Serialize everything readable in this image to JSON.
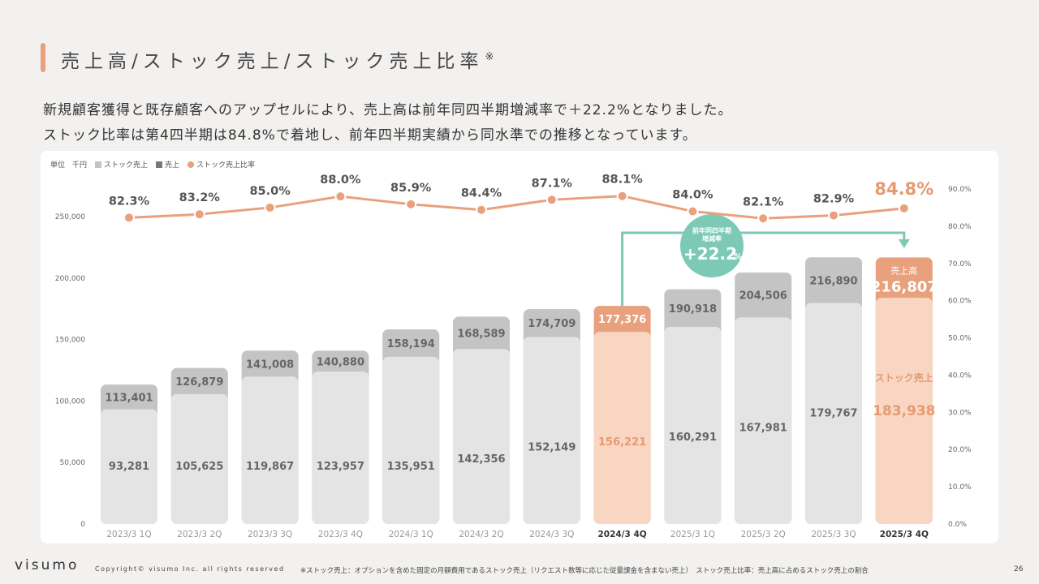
{
  "header": {
    "title": "売上高/ストック売上/ストック売上比率",
    "title_mark": "※",
    "line1": "新規顧客獲得と既存顧客へのアップセルにより、売上高は前年同四半期増減率で＋22.2%となりました。",
    "line2": "ストック比率は第4四半期は84.8%で着地し、前年四半期実績から同水準での推移となっています。"
  },
  "legend": {
    "unit": "単位　千円",
    "stock": "ストック売上",
    "total": "売上",
    "ratio": "ストック売上比率"
  },
  "callout": {
    "line1": "前年同四半期",
    "line2": "増減率",
    "value": "+22.2",
    "unit": "%"
  },
  "last_bar_labels": {
    "total": "売上高",
    "stock": "ストック売上"
  },
  "colors": {
    "stock": "#e4e4e4",
    "total": "#c4c4c4",
    "highlight_stock": "#f8d6c2",
    "highlight_total": "#e9a07c",
    "ratio_line": "#e9a07c",
    "callout": "#7cc9b5",
    "accent_text": "#e69a72"
  },
  "chart_data": {
    "type": "bar",
    "categories": [
      "2023/3 1Q",
      "2023/3 2Q",
      "2023/3 3Q",
      "2023/3 4Q",
      "2024/3 1Q",
      "2024/3 2Q",
      "2024/3 3Q",
      "2024/3 4Q",
      "2025/3 1Q",
      "2025/3 2Q",
      "2025/3 3Q",
      "2025/3 4Q"
    ],
    "series": [
      {
        "name": "売上",
        "values": [
          113401,
          126879,
          141008,
          140880,
          158194,
          168589,
          174709,
          177376,
          190918,
          204506,
          216890,
          216807
        ]
      },
      {
        "name": "ストック売上",
        "values": [
          93281,
          105625,
          119867,
          123957,
          135951,
          142356,
          152149,
          156221,
          160291,
          167981,
          179767,
          183938
        ]
      },
      {
        "name": "ストック売上比率",
        "values": [
          82.3,
          83.2,
          85.0,
          88.0,
          85.9,
          84.4,
          87.1,
          88.1,
          84.0,
          82.1,
          82.9,
          84.8
        ]
      }
    ],
    "y_left": {
      "min": 0,
      "max": 250000,
      "ticks": [
        "0",
        "50,000",
        "100,000",
        "150,000",
        "200,000",
        "250,000"
      ]
    },
    "y_right": {
      "min": 0,
      "max": 90,
      "ticks": [
        "0.0%",
        "10.0%",
        "20.0%",
        "30.0%",
        "40.0%",
        "50.0%",
        "60.0%",
        "70.0%",
        "80.0%",
        "90.0%"
      ]
    },
    "bar_labels": [
      "113,401",
      "126,879",
      "141,008",
      "140,880",
      "158,194",
      "168,589",
      "174,709",
      "177,376",
      "190,918",
      "204,506",
      "216,890",
      "216,807"
    ],
    "stock_labels": [
      "93,281",
      "105,625",
      "119,867",
      "123,957",
      "135,951",
      "142,356",
      "152,149",
      "156,221",
      "160,291",
      "167,981",
      "179,767",
      "183,938"
    ],
    "ratio_labels": [
      "82.3%",
      "83.2%",
      "85.0%",
      "88.0%",
      "85.9%",
      "84.4%",
      "87.1%",
      "88.1%",
      "84.0%",
      "82.1%",
      "82.9%",
      "84.8%"
    ],
    "highlight": [
      7,
      11
    ]
  },
  "footer": {
    "logo": "visumo",
    "copyright": "Copyright© visumo Inc. all rights reserved",
    "footnote": "※ストック売上：オプションを含めた固定の月額費用であるストック売上（リクエスト数等に応じた従量課金を含まない売上）　ストック売上比率：売上高に占めるストック売上の割合",
    "page": "26"
  }
}
